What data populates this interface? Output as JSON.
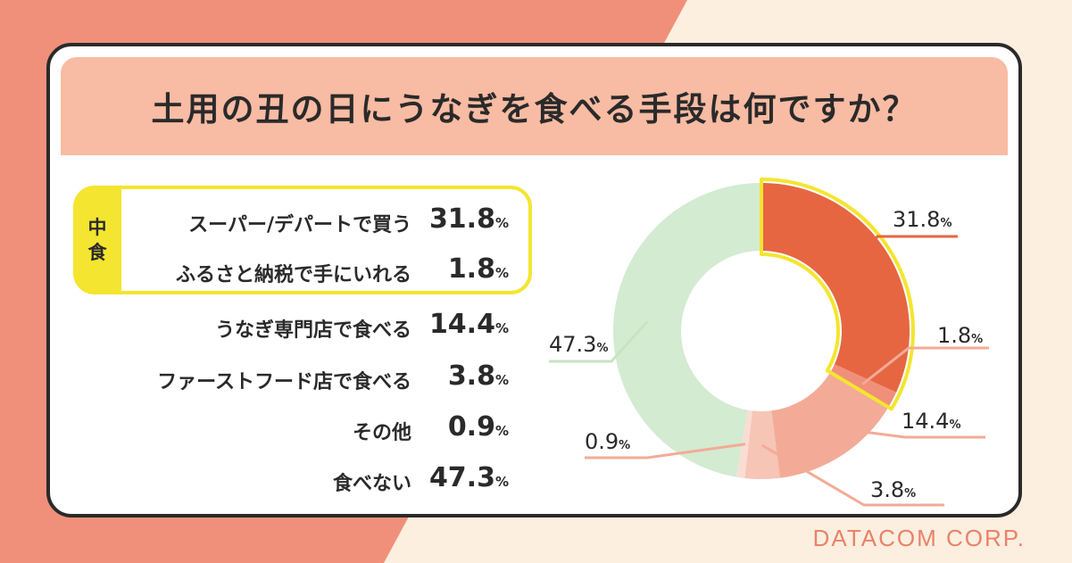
{
  "title": "土用の丑の日にうなぎを食べる手段は何ですか？",
  "group": {
    "label": "中食",
    "chars": [
      "中",
      "食"
    ]
  },
  "percent_symbol": "%",
  "footer": "DATACOM CORP.",
  "colors": {
    "background": "#fcefdf",
    "background_accent": "#f0907a",
    "title_band": "#f8bba3",
    "highlight": "#f4e530",
    "text": "#2a2a2a"
  },
  "chart_data": {
    "type": "pie",
    "variant": "donut",
    "unit": "%",
    "categories": [
      "スーパー/デパートで買う",
      "ふるさと納税で手にいれる",
      "うなぎ専門店で食べる",
      "ファーストフード店で食べる",
      "その他",
      "食べない"
    ],
    "values": [
      31.8,
      1.8,
      14.4,
      3.8,
      0.9,
      47.3
    ],
    "value_labels": [
      "31.8",
      "1.8",
      "14.4",
      "3.8",
      "0.9",
      "47.3"
    ],
    "colors": [
      "#e66642",
      "#f0907a",
      "#f3ab97",
      "#f6c5b6",
      "#f9ddd3",
      "#d3ebd1"
    ],
    "highlighted_group": [
      "スーパー/デパートで買う",
      "ふるさと納税で手にいれる"
    ]
  }
}
